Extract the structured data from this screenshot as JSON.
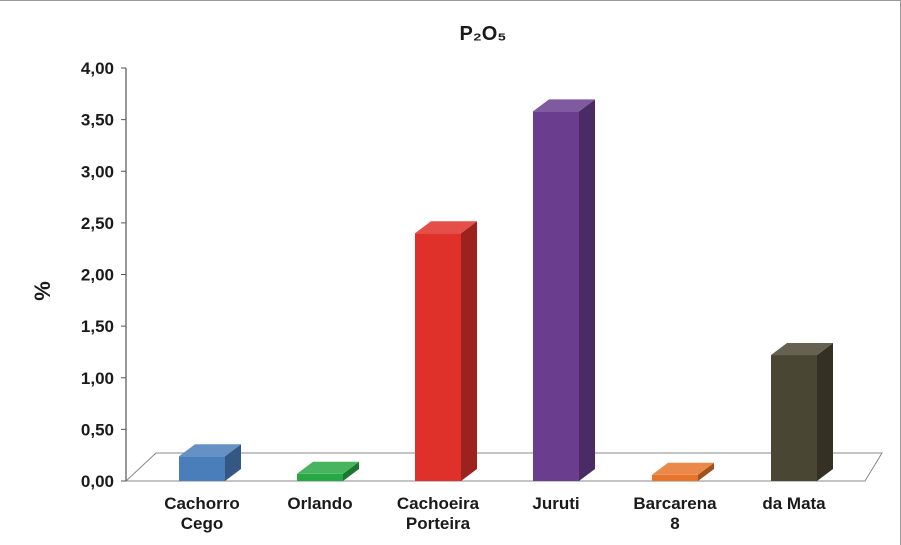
{
  "chart_data": {
    "type": "bar",
    "title": "P₂O₅",
    "ylabel": "%",
    "xlabel": "",
    "ylim": [
      0,
      4
    ],
    "yticks": [
      "0,00",
      "0,50",
      "1,00",
      "1,50",
      "2,00",
      "2,50",
      "3,00",
      "3,50",
      "4,00"
    ],
    "categories": [
      [
        "Cachorro",
        "Cego"
      ],
      [
        "Orlando"
      ],
      [
        "Cachoeira",
        "Porteira"
      ],
      [
        "Juruti"
      ],
      [
        "Barcarena",
        "8"
      ],
      [
        "da Mata"
      ]
    ],
    "values": [
      0.24,
      0.07,
      2.4,
      3.58,
      0.06,
      1.22
    ],
    "colors": [
      "#4a7ebb",
      "#27a844",
      "#e0302a",
      "#6a3d8f",
      "#e8742a",
      "#4a4634"
    ],
    "grid": false,
    "legend": "none",
    "style": "3d"
  }
}
